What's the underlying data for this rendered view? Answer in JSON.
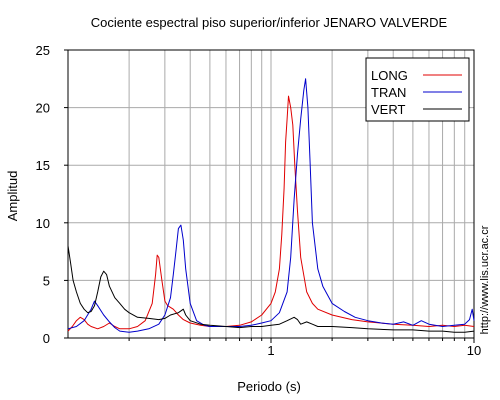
{
  "chart_data": {
    "type": "line",
    "title": "Cociente espectral piso superior/inferior  JENARO VALVERDE",
    "xlabel": "Periodo (s)",
    "ylabel": "Amplitud",
    "x_scale": "log",
    "xlim": [
      0.1,
      10
    ],
    "ylim": [
      0,
      25
    ],
    "x_tick_labels": [
      {
        "value": 1,
        "label": "1"
      },
      {
        "value": 10,
        "label": "10"
      }
    ],
    "y_tick_labels": [
      {
        "value": 0,
        "label": "0"
      },
      {
        "value": 5,
        "label": "5"
      },
      {
        "value": 10,
        "label": "10"
      },
      {
        "value": 15,
        "label": "15"
      },
      {
        "value": 20,
        "label": "20"
      },
      {
        "value": 25,
        "label": "25"
      }
    ],
    "grid": true,
    "legend_position": "top-right",
    "side_note": "http://www.lis.ucr.ac.cr",
    "series": [
      {
        "name": "LONG",
        "color": "#e00000",
        "points": [
          [
            0.1,
            0.6
          ],
          [
            0.105,
            1.0
          ],
          [
            0.11,
            1.5
          ],
          [
            0.115,
            1.8
          ],
          [
            0.12,
            1.6
          ],
          [
            0.125,
            1.2
          ],
          [
            0.13,
            1.0
          ],
          [
            0.14,
            0.8
          ],
          [
            0.15,
            1.0
          ],
          [
            0.16,
            1.3
          ],
          [
            0.17,
            1.0
          ],
          [
            0.18,
            0.8
          ],
          [
            0.2,
            0.8
          ],
          [
            0.22,
            1.0
          ],
          [
            0.24,
            1.5
          ],
          [
            0.26,
            3.0
          ],
          [
            0.27,
            5.5
          ],
          [
            0.275,
            7.2
          ],
          [
            0.28,
            7.0
          ],
          [
            0.29,
            5.0
          ],
          [
            0.3,
            3.2
          ],
          [
            0.31,
            2.8
          ],
          [
            0.33,
            2.5
          ],
          [
            0.35,
            2.0
          ],
          [
            0.37,
            1.6
          ],
          [
            0.4,
            1.3
          ],
          [
            0.45,
            1.1
          ],
          [
            0.5,
            1.0
          ],
          [
            0.6,
            1.0
          ],
          [
            0.7,
            1.1
          ],
          [
            0.8,
            1.4
          ],
          [
            0.9,
            2.0
          ],
          [
            1.0,
            3.0
          ],
          [
            1.05,
            4.0
          ],
          [
            1.1,
            6.0
          ],
          [
            1.13,
            9.0
          ],
          [
            1.16,
            13.0
          ],
          [
            1.18,
            17.0
          ],
          [
            1.2,
            19.0
          ],
          [
            1.22,
            21.0
          ],
          [
            1.25,
            20.0
          ],
          [
            1.28,
            18.5
          ],
          [
            1.31,
            15.0
          ],
          [
            1.35,
            11.0
          ],
          [
            1.4,
            7.0
          ],
          [
            1.5,
            4.0
          ],
          [
            1.6,
            3.0
          ],
          [
            1.7,
            2.5
          ],
          [
            2.0,
            2.0
          ],
          [
            2.5,
            1.6
          ],
          [
            3.0,
            1.4
          ],
          [
            4.0,
            1.2
          ],
          [
            5.0,
            1.1
          ],
          [
            6.0,
            1.0
          ],
          [
            7.0,
            1.1
          ],
          [
            8.0,
            1.0
          ],
          [
            9.0,
            1.1
          ],
          [
            10.0,
            1.0
          ]
        ]
      },
      {
        "name": "TRAN",
        "color": "#0000cc",
        "points": [
          [
            0.1,
            0.8
          ],
          [
            0.11,
            1.0
          ],
          [
            0.12,
            1.5
          ],
          [
            0.13,
            2.5
          ],
          [
            0.135,
            3.2
          ],
          [
            0.14,
            2.8
          ],
          [
            0.15,
            2.0
          ],
          [
            0.16,
            1.4
          ],
          [
            0.17,
            0.9
          ],
          [
            0.18,
            0.6
          ],
          [
            0.2,
            0.5
          ],
          [
            0.22,
            0.6
          ],
          [
            0.25,
            0.8
          ],
          [
            0.28,
            1.2
          ],
          [
            0.3,
            2.0
          ],
          [
            0.32,
            3.5
          ],
          [
            0.33,
            5.5
          ],
          [
            0.34,
            7.5
          ],
          [
            0.35,
            9.5
          ],
          [
            0.36,
            9.8
          ],
          [
            0.37,
            8.5
          ],
          [
            0.38,
            6.0
          ],
          [
            0.4,
            3.0
          ],
          [
            0.43,
            1.5
          ],
          [
            0.47,
            1.1
          ],
          [
            0.5,
            1.0
          ],
          [
            0.6,
            1.0
          ],
          [
            0.7,
            1.0
          ],
          [
            0.8,
            1.1
          ],
          [
            0.9,
            1.3
          ],
          [
            1.0,
            1.5
          ],
          [
            1.1,
            2.2
          ],
          [
            1.2,
            4.0
          ],
          [
            1.25,
            7.0
          ],
          [
            1.3,
            12.0
          ],
          [
            1.35,
            16.0
          ],
          [
            1.4,
            19.0
          ],
          [
            1.45,
            21.5
          ],
          [
            1.48,
            22.5
          ],
          [
            1.52,
            20.0
          ],
          [
            1.56,
            15.0
          ],
          [
            1.6,
            10.0
          ],
          [
            1.7,
            6.0
          ],
          [
            1.8,
            4.5
          ],
          [
            2.0,
            3.0
          ],
          [
            2.3,
            2.3
          ],
          [
            2.6,
            1.8
          ],
          [
            3.0,
            1.5
          ],
          [
            3.5,
            1.3
          ],
          [
            4.0,
            1.2
          ],
          [
            4.5,
            1.4
          ],
          [
            5.0,
            1.1
          ],
          [
            5.5,
            1.5
          ],
          [
            6.0,
            1.2
          ],
          [
            7.0,
            1.0
          ],
          [
            8.0,
            1.1
          ],
          [
            9.0,
            1.2
          ],
          [
            9.5,
            1.6
          ],
          [
            9.8,
            2.5
          ],
          [
            10.0,
            1.5
          ]
        ]
      },
      {
        "name": "VERT",
        "color": "#000000",
        "points": [
          [
            0.1,
            8.0
          ],
          [
            0.103,
            6.5
          ],
          [
            0.106,
            5.0
          ],
          [
            0.11,
            4.0
          ],
          [
            0.115,
            3.0
          ],
          [
            0.12,
            2.5
          ],
          [
            0.125,
            2.2
          ],
          [
            0.13,
            2.3
          ],
          [
            0.135,
            2.8
          ],
          [
            0.14,
            4.0
          ],
          [
            0.145,
            5.3
          ],
          [
            0.15,
            5.8
          ],
          [
            0.155,
            5.5
          ],
          [
            0.16,
            4.5
          ],
          [
            0.17,
            3.5
          ],
          [
            0.18,
            3.0
          ],
          [
            0.19,
            2.5
          ],
          [
            0.2,
            2.2
          ],
          [
            0.22,
            1.8
          ],
          [
            0.25,
            1.7
          ],
          [
            0.28,
            1.6
          ],
          [
            0.3,
            1.7
          ],
          [
            0.32,
            2.0
          ],
          [
            0.35,
            2.2
          ],
          [
            0.37,
            2.5
          ],
          [
            0.38,
            2.0
          ],
          [
            0.4,
            1.5
          ],
          [
            0.45,
            1.2
          ],
          [
            0.5,
            1.1
          ],
          [
            0.6,
            1.0
          ],
          [
            0.7,
            0.9
          ],
          [
            0.8,
            1.0
          ],
          [
            0.9,
            1.0
          ],
          [
            1.0,
            1.1
          ],
          [
            1.1,
            1.2
          ],
          [
            1.2,
            1.5
          ],
          [
            1.3,
            1.8
          ],
          [
            1.35,
            1.6
          ],
          [
            1.4,
            1.2
          ],
          [
            1.5,
            1.4
          ],
          [
            1.6,
            1.2
          ],
          [
            1.7,
            1.0
          ],
          [
            2.0,
            1.0
          ],
          [
            2.5,
            0.9
          ],
          [
            3.0,
            0.8
          ],
          [
            4.0,
            0.7
          ],
          [
            5.0,
            0.7
          ],
          [
            6.0,
            0.6
          ],
          [
            7.0,
            0.6
          ],
          [
            8.0,
            0.5
          ],
          [
            9.0,
            0.5
          ],
          [
            10.0,
            0.6
          ]
        ]
      }
    ]
  }
}
